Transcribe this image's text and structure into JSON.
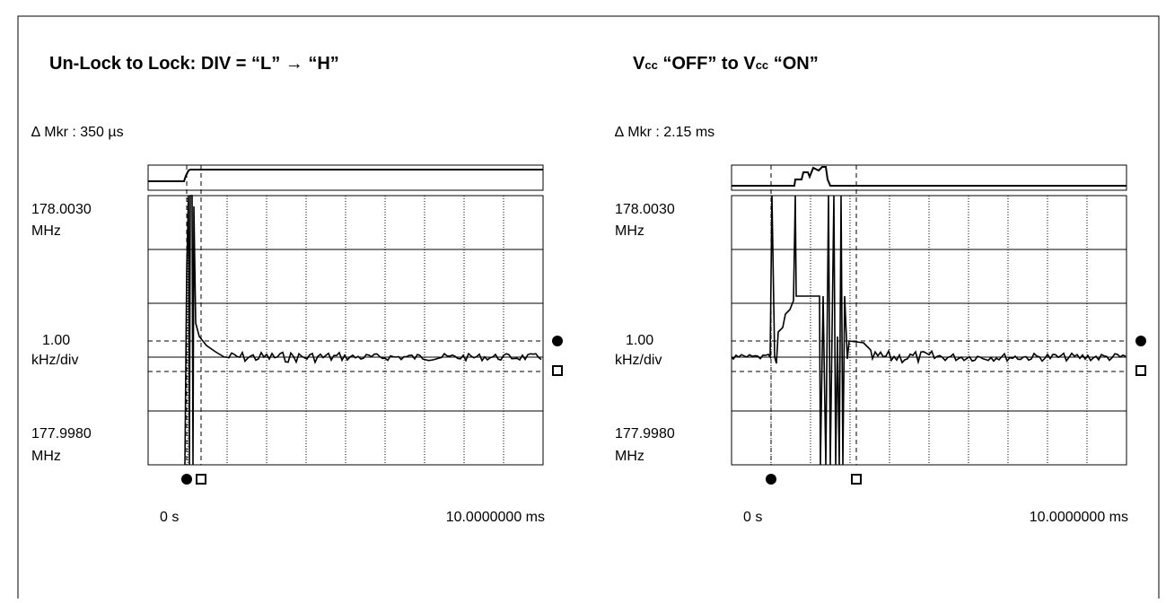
{
  "panels": [
    {
      "title": [
        "Un-Lock to Lock: DIV = “L” → “H”"
      ],
      "marker": "∆ Mkr  : 350 µs",
      "y_top": [
        "178.0030",
        "MHz"
      ],
      "y_mid": [
        "1.00",
        "kHz/div"
      ],
      "y_bottom": [
        "177.9980",
        "MHz"
      ],
      "x_start": "0 s",
      "x_end": "10.0000000 ms"
    },
    {
      "title": [
        "V",
        "cc",
        " “OFF” to V",
        "cc",
        " “ON”"
      ],
      "marker": "∆ Mkr  : 2.15 ms",
      "y_top": [
        "178.0030",
        "MHz"
      ],
      "y_mid": [
        "1.00",
        "kHz/div"
      ],
      "y_bottom": [
        "177.9980",
        "MHz"
      ],
      "x_start": "0 s",
      "x_end": "10.0000000 ms"
    }
  ]
}
